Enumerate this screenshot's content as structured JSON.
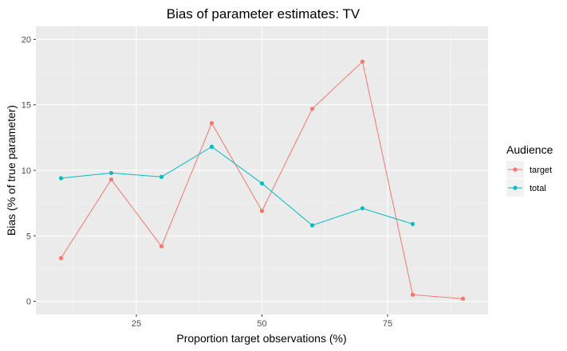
{
  "chart_data": {
    "type": "line",
    "title": "Bias of parameter estimates: TV",
    "xlabel": "Proportion target observations (%)",
    "ylabel": "Bias (% of true parameter)",
    "xlim": [
      5,
      95
    ],
    "ylim": [
      -1.0,
      21.0
    ],
    "x_ticks": [
      25,
      50,
      75
    ],
    "y_ticks": [
      0,
      5,
      10,
      15,
      20
    ],
    "x_tick_labels": [
      "25",
      "50",
      "75"
    ],
    "y_tick_labels": [
      "0",
      "5",
      "10",
      "15",
      "20"
    ],
    "grid": true,
    "legend": {
      "title": "Audience",
      "position": "right"
    },
    "series": [
      {
        "name": "target",
        "color": "#F8766D",
        "x": [
          10,
          20,
          30,
          40,
          50,
          60,
          70,
          80,
          90
        ],
        "y": [
          3.3,
          9.3,
          4.2,
          13.6,
          6.9,
          14.7,
          18.3,
          0.5,
          0.2
        ]
      },
      {
        "name": "total",
        "color": "#00BFC4",
        "x": [
          10,
          20,
          30,
          40,
          50,
          60,
          70,
          80
        ],
        "y": [
          9.4,
          9.8,
          9.5,
          11.8,
          9.0,
          5.8,
          7.1,
          5.9
        ]
      }
    ]
  }
}
